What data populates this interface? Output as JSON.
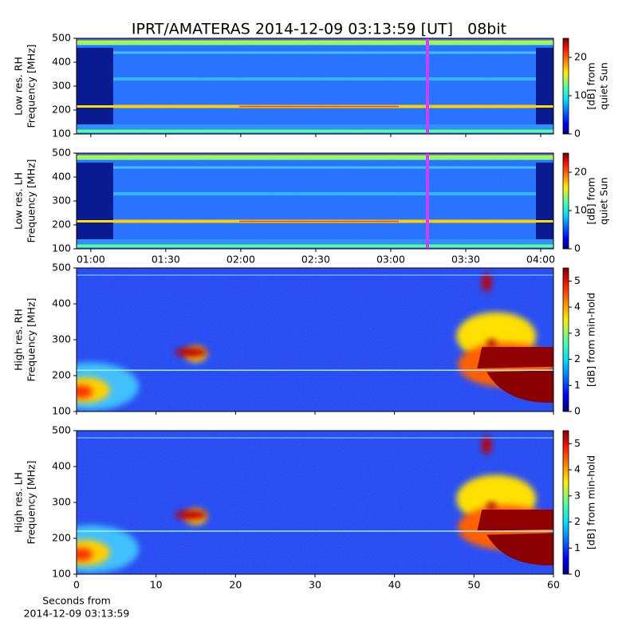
{
  "chart_data": [
    {
      "type": "spectrogram",
      "title": "IPRT/AMATERAS 2014-12-09 03:13:59 [UT]   08bit",
      "ylabel": [
        "Low res. RH",
        "Frequency [MHz]"
      ],
      "ylim": [
        100,
        500
      ],
      "yticks": [
        100,
        200,
        300,
        400,
        500
      ],
      "colorbar": {
        "label": [
          "[dB] from",
          "quiet Sun"
        ],
        "lim": [
          0,
          25
        ],
        "ticks": [
          0,
          10,
          20
        ]
      }
    },
    {
      "type": "spectrogram",
      "ylabel": [
        "Low res. LH",
        "Frequency [MHz]"
      ],
      "ylim": [
        100,
        500
      ],
      "yticks": [
        100,
        200,
        300,
        400,
        500
      ],
      "xlim": [
        54.3,
        245.1
      ],
      "xticks": [
        {
          "value": 60,
          "label": "01:00"
        },
        {
          "value": 90,
          "label": "01:30"
        },
        {
          "value": 120,
          "label": "02:00"
        },
        {
          "value": 150,
          "label": "02:30"
        },
        {
          "value": 180,
          "label": "03:00"
        },
        {
          "value": 210,
          "label": "03:30"
        },
        {
          "value": 240,
          "label": "04:00"
        }
      ],
      "colorbar": {
        "label": [
          "[dB] from",
          "quiet Sun"
        ],
        "lim": [
          0,
          25
        ],
        "ticks": [
          0,
          10,
          20
        ]
      }
    },
    {
      "type": "spectrogram",
      "ylabel": [
        "High res. RH",
        "Frequency [MHz]"
      ],
      "ylim": [
        100,
        500
      ],
      "yticks": [
        100,
        200,
        300,
        400,
        500
      ],
      "colorbar": {
        "label": [
          "[dB] from min-hold"
        ],
        "lim": [
          0,
          5.5
        ],
        "ticks": [
          0,
          1,
          2,
          3,
          4,
          5
        ]
      }
    },
    {
      "type": "spectrogram",
      "ylabel": [
        "High res. LH",
        "Frequency [MHz]"
      ],
      "ylim": [
        100,
        500
      ],
      "yticks": [
        100,
        200,
        300,
        400,
        500
      ],
      "xlim": [
        0,
        60
      ],
      "xticks": [
        0,
        10,
        20,
        30,
        40,
        50,
        60
      ],
      "xlabel": [
        "Seconds from",
        "2014-12-09 03:13:59"
      ],
      "colorbar": {
        "label": [
          "[dB] from min-hold"
        ],
        "lim": [
          0,
          5.5
        ],
        "ticks": [
          0,
          1,
          2,
          3,
          4,
          5
        ]
      }
    }
  ]
}
